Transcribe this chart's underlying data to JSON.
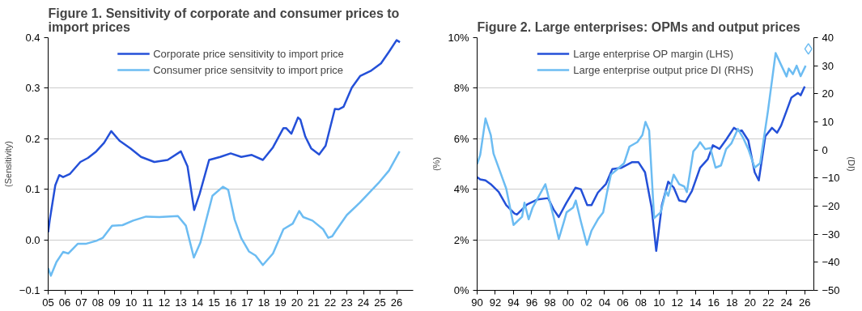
{
  "chart_data": [
    {
      "type": "line",
      "title": "Figure 1. Sensitivity of corporate and consumer prices to import prices",
      "ylabel": "(Sensitivity)",
      "xlim": [
        2005,
        2027
      ],
      "xticks": [
        {
          "value": 2005,
          "label": "05"
        },
        {
          "value": 2006,
          "label": "06"
        },
        {
          "value": 2007,
          "label": "07"
        },
        {
          "value": 2008,
          "label": "08"
        },
        {
          "value": 2009,
          "label": "09"
        },
        {
          "value": 2010,
          "label": "10"
        },
        {
          "value": 2011,
          "label": "11"
        },
        {
          "value": 2012,
          "label": "12"
        },
        {
          "value": 2013,
          "label": "13"
        },
        {
          "value": 2014,
          "label": "14"
        },
        {
          "value": 2015,
          "label": "15"
        },
        {
          "value": 2016,
          "label": "16"
        },
        {
          "value": 2017,
          "label": "17"
        },
        {
          "value": 2018,
          "label": "18"
        },
        {
          "value": 2019,
          "label": "19"
        },
        {
          "value": 2020,
          "label": "20"
        },
        {
          "value": 2021,
          "label": "21"
        },
        {
          "value": 2022,
          "label": "22"
        },
        {
          "value": 2023,
          "label": "23"
        },
        {
          "value": 2024,
          "label": "24"
        },
        {
          "value": 2025,
          "label": "25"
        },
        {
          "value": 2026,
          "label": "26"
        }
      ],
      "ylim": [
        -0.1,
        0.4
      ],
      "yticks": [
        -0.1,
        {
          "value": 0,
          "label": "0.0"
        },
        0.1,
        0.2,
        0.3,
        0.4
      ],
      "grid": "y",
      "legend": "top",
      "line_style": "solid",
      "marker": "none",
      "series": [
        {
          "name": "Corporate price sensitivity to import price",
          "color": "#2450d8",
          "x": [
            2005.0,
            2005.1,
            2005.43,
            2005.67,
            2005.9,
            2006.3,
            2006.94,
            2007.4,
            2007.9,
            2008.37,
            2008.8,
            2009.3,
            2009.96,
            2010.6,
            2011.4,
            2012.2,
            2013.0,
            2013.4,
            2013.8,
            2014.13,
            2014.7,
            2015.37,
            2016.0,
            2016.64,
            2017.27,
            2017.94,
            2018.55,
            2019.18,
            2019.34,
            2019.66,
            2020.06,
            2020.2,
            2020.5,
            2020.85,
            2021.33,
            2021.72,
            2022.28,
            2022.5,
            2022.8,
            2023.3,
            2023.8,
            2024.43,
            2025.06,
            2025.54,
            2026.0,
            2026.2
          ],
          "values": [
            0.015,
            0.04,
            0.108,
            0.128,
            0.124,
            0.13,
            0.154,
            0.162,
            0.175,
            0.192,
            0.215,
            0.196,
            0.181,
            0.164,
            0.154,
            0.158,
            0.175,
            0.145,
            0.059,
            0.091,
            0.158,
            0.164,
            0.171,
            0.164,
            0.168,
            0.158,
            0.183,
            0.221,
            0.221,
            0.21,
            0.242,
            0.238,
            0.204,
            0.181,
            0.169,
            0.186,
            0.259,
            0.258,
            0.263,
            0.301,
            0.324,
            0.334,
            0.349,
            0.372,
            0.395,
            0.391
          ]
        },
        {
          "name": "Consumer price sensitvity to import price",
          "color": "#6cbcf2",
          "x": [
            2005.0,
            2005.16,
            2005.5,
            2005.9,
            2006.22,
            2006.78,
            2007.26,
            2007.9,
            2008.3,
            2008.85,
            2009.48,
            2010.12,
            2010.9,
            2011.7,
            2012.82,
            2013.3,
            2013.78,
            2014.17,
            2014.9,
            2015.53,
            2015.85,
            2016.24,
            2016.64,
            2017.1,
            2017.5,
            2017.94,
            2018.55,
            2019.18,
            2019.74,
            2020.13,
            2020.37,
            2020.93,
            2021.57,
            2021.88,
            2022.12,
            2022.36,
            2023.0,
            2023.8,
            2024.9,
            2025.54,
            2026.18
          ],
          "values": [
            -0.056,
            -0.071,
            -0.044,
            -0.024,
            -0.027,
            -0.008,
            -0.008,
            -0.002,
            0.004,
            0.028,
            0.029,
            0.038,
            0.046,
            0.045,
            0.047,
            0.028,
            -0.035,
            -0.006,
            0.087,
            0.105,
            0.099,
            0.04,
            0.003,
            -0.023,
            -0.031,
            -0.05,
            -0.027,
            0.021,
            0.032,
            0.057,
            0.045,
            0.038,
            0.021,
            0.004,
            0.007,
            0.019,
            0.049,
            0.074,
            0.112,
            0.137,
            0.175
          ]
        }
      ]
    },
    {
      "type": "line",
      "title": "Figure 2. Large enterprises: OPMs and output prices",
      "ylabel": "(%)",
      "y2label": "(DI)",
      "xlim": [
        1990,
        2027
      ],
      "xticks": [
        {
          "value": 1990,
          "label": "90"
        },
        {
          "value": 1992,
          "label": "92"
        },
        {
          "value": 1994,
          "label": "94"
        },
        {
          "value": 1996,
          "label": "96"
        },
        {
          "value": 1998,
          "label": "98"
        },
        {
          "value": 2000,
          "label": "00"
        },
        {
          "value": 2002,
          "label": "02"
        },
        {
          "value": 2004,
          "label": "04"
        },
        {
          "value": 2006,
          "label": "06"
        },
        {
          "value": 2008,
          "label": "08"
        },
        {
          "value": 2010,
          "label": "10"
        },
        {
          "value": 2012,
          "label": "12"
        },
        {
          "value": 2014,
          "label": "14"
        },
        {
          "value": 2016,
          "label": "16"
        },
        {
          "value": 2018,
          "label": "18"
        },
        {
          "value": 2020,
          "label": "20"
        },
        {
          "value": 2022,
          "label": "22"
        },
        {
          "value": 2024,
          "label": "24"
        },
        {
          "value": 2026,
          "label": "26"
        }
      ],
      "ylim": [
        0,
        10
      ],
      "yticks": [
        {
          "value": 0,
          "label": "0%"
        },
        {
          "value": 2,
          "label": "2%"
        },
        {
          "value": 4,
          "label": "4%"
        },
        {
          "value": 6,
          "label": "6%"
        },
        {
          "value": 8,
          "label": "8%"
        },
        {
          "value": 10,
          "label": "10%"
        }
      ],
      "y2lim": [
        -50,
        40
      ],
      "y2ticks": [
        -50,
        -40,
        -30,
        -20,
        -10,
        0,
        10,
        20,
        30,
        40
      ],
      "grid": "y",
      "legend": "top",
      "line_style": "solid",
      "marker": "none",
      "series": [
        {
          "name": "Large enterprise OP margin (LHS)",
          "color": "#2450d8",
          "x": [
            1990,
            1990.34,
            1990.92,
            1991.5,
            1992.36,
            1993.2,
            1994.1,
            1994.37,
            1995.5,
            1996.67,
            1997.8,
            1998.4,
            1998.97,
            1999.8,
            2000.8,
            2001.4,
            2002.1,
            2002.56,
            2003.27,
            2004.14,
            2004.86,
            2005.86,
            2007.0,
            2007.73,
            2008.45,
            2009.17,
            2009.68,
            2010.3,
            2011.0,
            2011.6,
            2012.2,
            2012.9,
            2013.6,
            2014.5,
            2015.34,
            2015.9,
            2016.64,
            2017.36,
            2018.22,
            2018.8,
            2019.08,
            2019.8,
            2020.5,
            2020.95,
            2021.67,
            2022.4,
            2022.96,
            2023.4,
            2023.97,
            2024.54,
            2025.26,
            2025.55,
            2026.0
          ],
          "values": [
            4.48,
            4.39,
            4.35,
            4.2,
            3.9,
            3.37,
            3.04,
            3.0,
            3.4,
            3.6,
            3.65,
            3.2,
            2.9,
            3.46,
            4.06,
            4.0,
            3.37,
            3.37,
            3.87,
            4.2,
            4.8,
            4.85,
            5.07,
            5.07,
            4.67,
            3.28,
            1.56,
            3.37,
            4.3,
            4.07,
            3.56,
            3.5,
            3.93,
            4.85,
            5.19,
            5.74,
            5.6,
            5.96,
            6.43,
            6.3,
            6.33,
            5.93,
            4.67,
            4.35,
            6.1,
            6.43,
            6.24,
            6.52,
            7.07,
            7.63,
            7.81,
            7.72,
            8.07
          ]
        },
        {
          "name": "Large enterprise output price DI (RHS)",
          "color": "#6cbcf2",
          "axis": "y2",
          "x": [
            1990,
            1990.34,
            1990.92,
            1991.5,
            1991.8,
            1992.64,
            1993.2,
            1994.0,
            1994.94,
            1995.2,
            1995.66,
            1996.1,
            1997.5,
            1998.4,
            1998.97,
            1999.54,
            1999.83,
            2000.55,
            2000.84,
            2001.4,
            2002.07,
            2002.56,
            2003.27,
            2003.85,
            2004.3,
            2004.7,
            2005.6,
            2006.15,
            2006.74,
            2007.6,
            2008.16,
            2008.5,
            2008.9,
            2009.45,
            2010.17,
            2010.75,
            2011.0,
            2011.6,
            2012.2,
            2012.76,
            2013.05,
            2013.76,
            2014.2,
            2014.5,
            2015.06,
            2015.63,
            2016.2,
            2016.8,
            2017.36,
            2017.93,
            2018.65,
            2019.2,
            2019.8,
            2020.5,
            2021.1,
            2021.95,
            2022.8,
            2023.4,
            2024.0,
            2024.25,
            2024.7,
            2025.11,
            2025.55,
            2026.1
          ],
          "values": [
            -5,
            -1.7,
            11.2,
            5.3,
            -1.3,
            -8.8,
            -13.8,
            -26.7,
            -23.8,
            -18.8,
            -24.7,
            -20.5,
            -12.2,
            -23.8,
            -31.7,
            -25.5,
            -22.2,
            -20.5,
            -18,
            -25.5,
            -33.8,
            -28.8,
            -24.7,
            -22.2,
            -14.7,
            -8.8,
            -6.3,
            -4.7,
            1.2,
            2.8,
            5.3,
            10,
            7,
            -24.3,
            -22.2,
            -14.7,
            -16.3,
            -8.8,
            -12.2,
            -13,
            -15,
            -0.5,
            1.2,
            2.8,
            0.3,
            0.7,
            -6.3,
            -5.5,
            0.3,
            2.3,
            7.5,
            4.5,
            0.3,
            -6.3,
            -4.7,
            13.7,
            34.5,
            30.3,
            26.2,
            29,
            27,
            30,
            26.3,
            30
          ]
        },
        {
          "type": "scatter",
          "marker": "diamond",
          "color": "#6cbcf2",
          "axis": "y2",
          "x": [
            2026.4
          ],
          "values": [
            36
          ]
        }
      ]
    }
  ]
}
